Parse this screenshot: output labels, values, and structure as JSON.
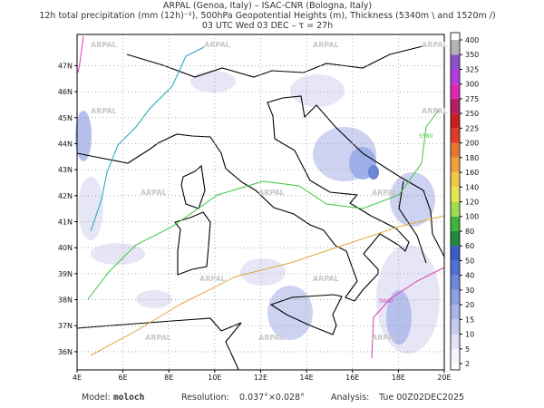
{
  "header": {
    "line1": "ARPAL (Genoa, Italy)  –  ISAC-CNR (Bologna, Italy)",
    "line2": "12h total precipitation (mm (12h)⁻¹), 500hPa Geopotential Heights (m), Thickness (5340m \\ and 1520m /)",
    "line3": "03 UTC Wed 03 DEC  –  τ = 27h"
  },
  "map": {
    "xlim": [
      4,
      20
    ],
    "ylim": [
      35.3,
      48.2
    ],
    "xticks": [
      {
        "value": 4,
        "label": "4E"
      },
      {
        "value": 6,
        "label": "6E"
      },
      {
        "value": 8,
        "label": "8E"
      },
      {
        "value": 10,
        "label": "10E"
      },
      {
        "value": 12,
        "label": "12E"
      },
      {
        "value": 14,
        "label": "14E"
      },
      {
        "value": 16,
        "label": "16E"
      },
      {
        "value": 18,
        "label": "18E"
      },
      {
        "value": 20,
        "label": "20E"
      }
    ],
    "yticks": [
      {
        "value": 36,
        "label": "36N"
      },
      {
        "value": 37,
        "label": "37N"
      },
      {
        "value": 38,
        "label": "38N"
      },
      {
        "value": 39,
        "label": "39N"
      },
      {
        "value": 40,
        "label": "40N"
      },
      {
        "value": 41,
        "label": "41N"
      },
      {
        "value": 42,
        "label": "42N"
      },
      {
        "value": 43,
        "label": "43N"
      },
      {
        "value": 44,
        "label": "44N"
      },
      {
        "value": 45,
        "label": "45N"
      },
      {
        "value": 46,
        "label": "46N"
      },
      {
        "value": 47,
        "label": "47N"
      }
    ],
    "grid": true,
    "watermark": "ARPAL",
    "contour_labels": [
      "5580",
      "5640"
    ]
  },
  "colorbar": {
    "ticks": [
      2,
      5,
      10,
      15,
      20,
      30,
      40,
      50,
      60,
      80,
      100,
      120,
      140,
      160,
      180,
      200,
      225,
      250,
      275,
      300,
      325,
      350,
      400
    ],
    "colors": [
      "#f4f4fc",
      "#e2e2f6",
      "#c6cbef",
      "#a9b6ea",
      "#8ea0e4",
      "#7088dc",
      "#5270d2",
      "#3a5cc4",
      "#1f8a3a",
      "#3cb43c",
      "#a0dc50",
      "#e6e650",
      "#f0c846",
      "#f0a03c",
      "#e67832",
      "#dc3c28",
      "#c81e1e",
      "#b41e64",
      "#dc28b4",
      "#b43cdc",
      "#8c50c8",
      "#b4b4b4"
    ]
  },
  "footer": {
    "model_label": "Model:",
    "model": "moloch",
    "resolution_label": "Resolution:",
    "resolution": "0.037°×0.028°",
    "analysis_label": "Analysis:",
    "analysis": "Tue 00Z02DEC2025"
  }
}
